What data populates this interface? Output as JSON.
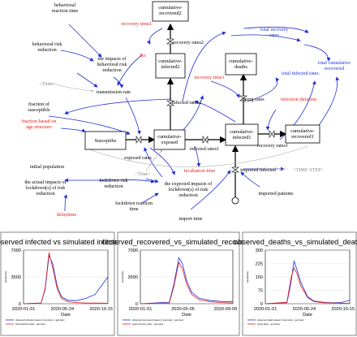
{
  "diagram": {
    "stocks": {
      "susceptible": "Susceptibe",
      "exposed": "cumulative-\nexposed",
      "infected1": "cumulative-\ninfected1",
      "infected2": "cumulative-\ninfected2",
      "recovered1": "cumulative-\nrecovered1",
      "recovered2": "cumulative-\nrecovered2",
      "deaths": "cumulative-\ndeaths"
    },
    "flows": {
      "exposed_rates": "exposed rates",
      "infected_rates1": "infected rates1",
      "infected_rates2": "infected rates2",
      "recovery_rates1": "recovery rates1",
      "recovery_rates2": "recovery rates2",
      "dying_rates": "dying rates",
      "imported_infected": "imported infected"
    },
    "variables": {
      "behavioral_reaction_time": "behavioral\nreaction time",
      "behavioral_risk_reduction": "behavioral risk\nreduction",
      "impacts_behavioral": "the impacts of\nbehavioral risk\nreduction",
      "transmission_rate": "transmission rate",
      "time1": "<Time>",
      "fraction_susceptible": "fraction of\nsusceptible",
      "initial_population": "initial population",
      "actual_impacts_lockdown": "the actual impacts of\nlockdown(s) of risk\nreduction",
      "lockdown_risk_reduction": "lockdown risk\nreduction",
      "time2": "<Time>",
      "expected_impacts_lockdown": "the expected impacts of\nlockdown(s) of risk\nreduction",
      "lockdown_reaction_time": "lockdown reaction\ntime",
      "import_time": "import time",
      "imported_patients": "imported patients",
      "time_step": "<TIME STEP>",
      "total_recovery_rates": "total recovery\nrates",
      "total_infected_rates": "total infected rates",
      "total_cumulative_recovered": "total cumulative\nrecovered"
    },
    "red_variables": {
      "recovery_time2": "recovery time2",
      "ro": "Ro",
      "recovery_time1": "recovery time1",
      "infection_duration": "infection duration",
      "fraction_age": "fraction based on\nage structure",
      "incubation_time": "incubation time",
      "delaytime": "delaytime"
    }
  },
  "charts": [
    {
      "title": "observed infected vs simulated infected",
      "ylabel": "people/day",
      "xlabel": "Date",
      "yticks": [
        "7000",
        "3500",
        "0"
      ],
      "xticks": [
        "2020-01-01",
        "2020-05-24",
        "2020-10-15"
      ],
      "legend": [
        "observed infected cases in Germany : germany",
        "total infected rates : germany"
      ]
    },
    {
      "title": "observed_recovered_vs_simulated_recovered",
      "ylabel": "people/day",
      "xlabel": "Date",
      "yticks": [
        "7000",
        "3500",
        "0"
      ],
      "xticks": [
        "2020-01-01",
        "2020-05-06",
        "2020-09-09"
      ],
      "legend": [
        "observed recovered cases in Germany : germany",
        "total recovery rates : germany"
      ]
    },
    {
      "title": "observed_deaths_vs_simulated_deaths",
      "ylabel": "people/day",
      "xlabel": "Date",
      "yticks": [
        "300",
        "225",
        "150",
        "75",
        "0"
      ],
      "xticks": [
        "2020-01-01",
        "2020-05-24",
        "2020-10-15"
      ],
      "legend": [
        "observed death cases in Germany : germany",
        "dying rates : germany"
      ]
    }
  ],
  "chart_data": [
    {
      "type": "line",
      "title": "observed infected vs simulated infected",
      "xlabel": "Date",
      "ylabel": "people/day",
      "ylim": [
        0,
        7000
      ],
      "x": [
        "2020-01-01",
        "2020-03-01",
        "2020-03-15",
        "2020-03-28",
        "2020-04-10",
        "2020-04-25",
        "2020-05-10",
        "2020-06-01",
        "2020-07-01",
        "2020-08-01",
        "2020-09-01",
        "2020-10-15"
      ],
      "series": [
        {
          "name": "observed infected cases in Germany : germany",
          "values": [
            0,
            100,
            1900,
            6300,
            5200,
            2300,
            900,
            450,
            400,
            700,
            1200,
            3500
          ]
        },
        {
          "name": "total infected rates : germany",
          "values": [
            0,
            80,
            2100,
            6700,
            4600,
            1900,
            700,
            250,
            150,
            100,
            80,
            60
          ]
        }
      ]
    },
    {
      "type": "line",
      "title": "observed_recovered_vs_simulated_recovered",
      "xlabel": "Date",
      "ylabel": "people/day",
      "ylim": [
        0,
        7000
      ],
      "x": [
        "2020-01-01",
        "2020-03-20",
        "2020-04-01",
        "2020-04-15",
        "2020-04-25",
        "2020-05-06",
        "2020-05-20",
        "2020-06-10",
        "2020-07-10",
        "2020-08-10",
        "2020-09-09"
      ],
      "series": [
        {
          "name": "observed recovered cases in Germany : germany",
          "values": [
            0,
            200,
            2500,
            6000,
            5200,
            3000,
            1500,
            700,
            400,
            300,
            250
          ]
        },
        {
          "name": "total recovery rates : germany",
          "values": [
            0,
            100,
            2200,
            5400,
            4500,
            2600,
            1200,
            500,
            250,
            150,
            100
          ]
        }
      ]
    },
    {
      "type": "line",
      "title": "observed_deaths_vs_simulated_deaths",
      "xlabel": "Date",
      "ylabel": "people/day",
      "ylim": [
        0,
        300
      ],
      "x": [
        "2020-01-01",
        "2020-03-15",
        "2020-03-28",
        "2020-04-08",
        "2020-04-18",
        "2020-05-01",
        "2020-05-24",
        "2020-06-15",
        "2020-07-15",
        "2020-08-15",
        "2020-09-15",
        "2020-10-15"
      ],
      "series": [
        {
          "name": "observed death cases in Germany : germany",
          "values": [
            0,
            5,
            110,
            240,
            190,
            120,
            40,
            15,
            8,
            5,
            6,
            20
          ]
        },
        {
          "name": "dying rates : germany",
          "values": [
            0,
            8,
            140,
            200,
            170,
            100,
            35,
            12,
            6,
            4,
            3,
            2
          ]
        }
      ]
    }
  ],
  "colors": {
    "observed": "#1f2fd6",
    "simulated": "#e0201a"
  }
}
